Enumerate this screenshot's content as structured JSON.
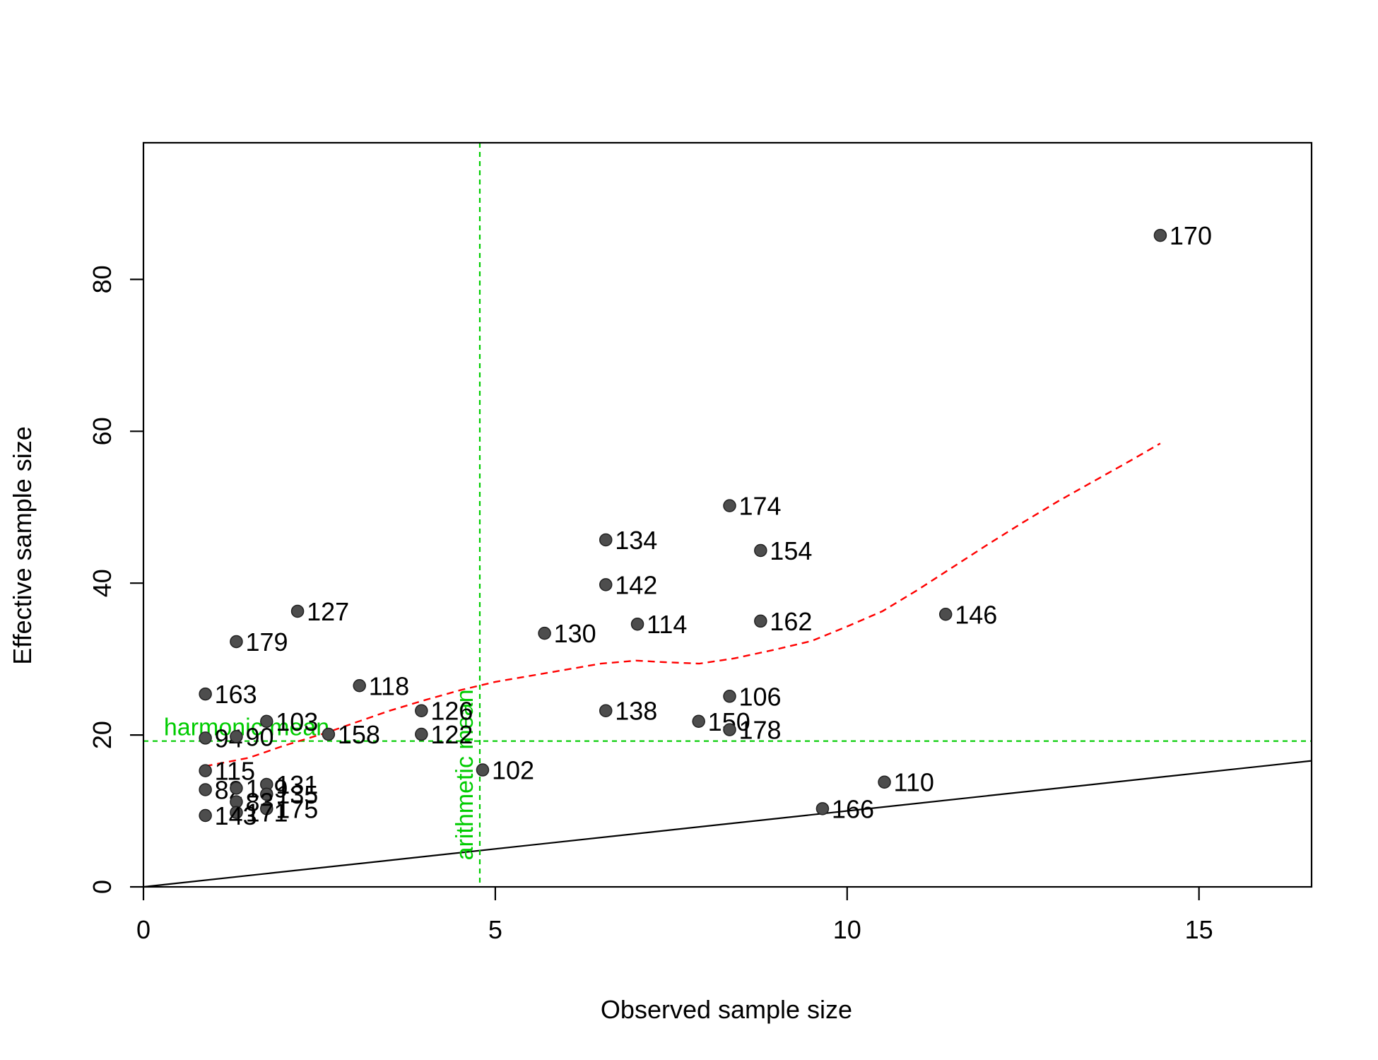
{
  "chart_data": {
    "type": "scatter",
    "title": "",
    "xlabel": "Observed sample size",
    "ylabel": "Effective sample size",
    "xlim": [
      0,
      16.6
    ],
    "ylim": [
      0,
      98
    ],
    "x_ticks": [
      "0",
      "5",
      "10",
      "15"
    ],
    "x_tick_values": [
      0,
      5,
      10,
      15
    ],
    "y_ticks": [
      "0",
      "20",
      "40",
      "60",
      "80"
    ],
    "y_tick_values": [
      0,
      20,
      40,
      60,
      80
    ],
    "grid": false,
    "legend": null,
    "colors": {
      "points": "#4d4d4d",
      "point_stroke": "#222222",
      "loess": "#ff0000",
      "reference": "#00cc00",
      "identity": "#000000",
      "frame": "#000000"
    },
    "points": [
      {
        "label": "170",
        "x": 14.45,
        "y": 85.8
      },
      {
        "label": "174",
        "x": 8.33,
        "y": 50.2
      },
      {
        "label": "154",
        "x": 8.77,
        "y": 44.3
      },
      {
        "label": "134",
        "x": 6.57,
        "y": 45.7
      },
      {
        "label": "142",
        "x": 6.57,
        "y": 39.8
      },
      {
        "label": "114",
        "x": 7.02,
        "y": 34.6
      },
      {
        "label": "162",
        "x": 8.77,
        "y": 35.0
      },
      {
        "label": "146",
        "x": 11.4,
        "y": 35.9
      },
      {
        "label": "130",
        "x": 5.7,
        "y": 33.4
      },
      {
        "label": "127",
        "x": 2.19,
        "y": 36.3
      },
      {
        "label": "179",
        "x": 1.32,
        "y": 32.3
      },
      {
        "label": "106",
        "x": 8.33,
        "y": 25.1
      },
      {
        "label": "138",
        "x": 6.57,
        "y": 23.2
      },
      {
        "label": "150",
        "x": 7.89,
        "y": 21.8
      },
      {
        "label": "178",
        "x": 8.33,
        "y": 20.7
      },
      {
        "label": "163",
        "x": 0.88,
        "y": 25.4
      },
      {
        "label": "118",
        "x": 3.07,
        "y": 26.5
      },
      {
        "label": "126",
        "x": 3.95,
        "y": 23.2
      },
      {
        "label": "122",
        "x": 3.95,
        "y": 20.1
      },
      {
        "label": "103",
        "x": 1.75,
        "y": 21.8
      },
      {
        "label": "158",
        "x": 2.63,
        "y": 20.1
      },
      {
        "label": "94",
        "x": 0.88,
        "y": 19.6
      },
      {
        "label": "90",
        "x": 1.32,
        "y": 19.8
      },
      {
        "label": "102",
        "x": 4.82,
        "y": 15.4
      },
      {
        "label": "115",
        "x": 0.88,
        "y": 15.3
      },
      {
        "label": "110",
        "x": 10.53,
        "y": 13.8
      },
      {
        "label": "166",
        "x": 9.65,
        "y": 10.3
      },
      {
        "label": "82",
        "x": 0.88,
        "y": 12.8
      },
      {
        "label": "139",
        "x": 1.32,
        "y": 13.0
      },
      {
        "label": "131",
        "x": 1.75,
        "y": 13.5
      },
      {
        "label": "135",
        "x": 1.75,
        "y": 12.2
      },
      {
        "label": "83",
        "x": 1.32,
        "y": 11.2
      },
      {
        "label": "175",
        "x": 1.75,
        "y": 10.3
      },
      {
        "label": "171",
        "x": 1.32,
        "y": 9.8
      },
      {
        "label": "143",
        "x": 0.88,
        "y": 9.4
      }
    ],
    "loess_curve": [
      {
        "x": 0.88,
        "y": 15.9
      },
      {
        "x": 1.5,
        "y": 17.0
      },
      {
        "x": 2.0,
        "y": 18.6
      },
      {
        "x": 2.6,
        "y": 20.3
      },
      {
        "x": 3.0,
        "y": 21.6
      },
      {
        "x": 3.5,
        "y": 23.2
      },
      {
        "x": 4.0,
        "y": 24.6
      },
      {
        "x": 4.5,
        "y": 25.9
      },
      {
        "x": 5.0,
        "y": 27.0
      },
      {
        "x": 5.5,
        "y": 27.8
      },
      {
        "x": 6.0,
        "y": 28.6
      },
      {
        "x": 6.5,
        "y": 29.4
      },
      {
        "x": 7.0,
        "y": 29.8
      },
      {
        "x": 7.4,
        "y": 29.6
      },
      {
        "x": 7.9,
        "y": 29.4
      },
      {
        "x": 8.4,
        "y": 30.1
      },
      {
        "x": 9.0,
        "y": 31.3
      },
      {
        "x": 9.5,
        "y": 32.4
      },
      {
        "x": 10.0,
        "y": 34.3
      },
      {
        "x": 10.5,
        "y": 36.3
      },
      {
        "x": 11.0,
        "y": 39.1
      },
      {
        "x": 11.5,
        "y": 42.1
      },
      {
        "x": 12.0,
        "y": 45.1
      },
      {
        "x": 12.5,
        "y": 48.0
      },
      {
        "x": 13.0,
        "y": 50.8
      },
      {
        "x": 13.5,
        "y": 53.4
      },
      {
        "x": 14.0,
        "y": 56.0
      },
      {
        "x": 14.45,
        "y": 58.4
      }
    ],
    "identity_line": {
      "from": [
        0,
        0
      ],
      "to": [
        16.6,
        16.6
      ]
    },
    "reference_lines": {
      "harmonic_mean": {
        "label": "harmonic mean",
        "y": 19.2
      },
      "arithmetic_mean": {
        "label": "arithmetic mean",
        "x": 4.78
      }
    }
  }
}
